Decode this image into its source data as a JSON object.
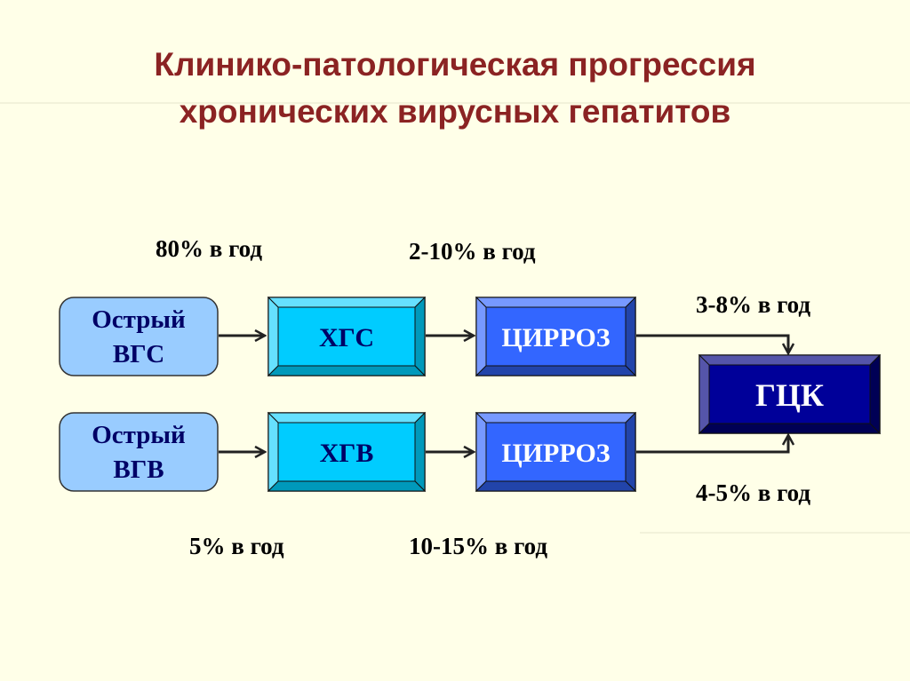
{
  "title": {
    "line1": "Клинико-патологическая прогрессия",
    "line2": "хронических вирусных гепатитов"
  },
  "colors": {
    "background": "#FFFFE8",
    "title": "#8B2323",
    "acute": "#99CCFF",
    "chronic": "#00CCFF",
    "cirrhosis": "#3366FF",
    "hcc": "#000099",
    "text_dark": "#000066"
  },
  "nodes": {
    "acute_hcv": {
      "line1": "Острый",
      "line2": "ВГС"
    },
    "acute_hbv": {
      "line1": "Острый",
      "line2": "ВГВ"
    },
    "chc": "ХГС",
    "chb": "ХГВ",
    "cirrhosis_c": "ЦИРРОЗ",
    "cirrhosis_b": "ЦИРРОЗ",
    "hcc": "ГЦК"
  },
  "rates": {
    "hcv_to_chronic": "80% в год",
    "chc_to_cirrhosis": "2-10% в год",
    "cirrhosis_c_to_hcc": "3-8% в год",
    "cirrhosis_b_to_hcc": "4-5% в год",
    "hbv_to_chronic": "5% в год",
    "chb_to_cirrhosis": "10-15% в год"
  }
}
